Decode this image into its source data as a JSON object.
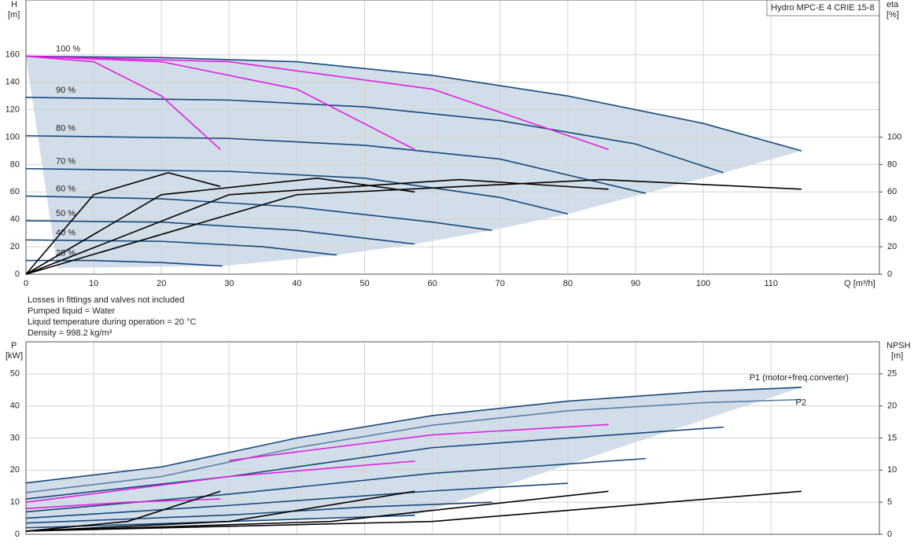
{
  "chart_data": [
    {
      "type": "line",
      "title": "Hydro MPC-E 4 CRIE 15-8",
      "ylabel": "H",
      "yunit": "[m]",
      "y2label": "eta",
      "y2unit": "[%]",
      "xlabel": "Q [m³/h]",
      "xlim": [
        0,
        126
      ],
      "ylim": [
        0,
        200
      ],
      "y2lim": [
        0,
        200
      ],
      "xticks": [
        0,
        10,
        20,
        30,
        40,
        50,
        60,
        70,
        80,
        90,
        100,
        110
      ],
      "yticks": [
        0,
        20,
        40,
        60,
        80,
        100,
        120,
        140,
        160
      ],
      "y2ticks": [
        0,
        20,
        40,
        60,
        80,
        100
      ],
      "grid": true,
      "xtick_labels": true,
      "area_color": "#c9d7e5",
      "series": [
        {
          "name": "100 %",
          "color": "#17487a",
          "x": [
            0,
            20,
            40,
            60,
            80,
            100,
            114.5
          ],
          "values": [
            159,
            158,
            155,
            145,
            130,
            110,
            90
          ]
        },
        {
          "name": "90 %",
          "color": "#17487a",
          "x": [
            0,
            30,
            50,
            70,
            90,
            103
          ],
          "values": [
            129,
            127,
            122,
            112,
            95,
            74
          ]
        },
        {
          "name": "80 %",
          "color": "#17487a",
          "x": [
            0,
            30,
            50,
            70,
            91.5
          ],
          "values": [
            101,
            99,
            94,
            84,
            59
          ]
        },
        {
          "name": "70 %",
          "color": "#17487a",
          "x": [
            0,
            30,
            50,
            70,
            80
          ],
          "values": [
            77,
            75,
            70,
            56,
            44
          ]
        },
        {
          "name": "60 %",
          "color": "#17487a",
          "x": [
            0,
            20,
            40,
            60,
            68.8
          ],
          "values": [
            57,
            55,
            49,
            38,
            32
          ]
        },
        {
          "name": "50 %",
          "color": "#17487a",
          "x": [
            0,
            20,
            40,
            57.4
          ],
          "values": [
            39,
            38,
            32,
            22
          ]
        },
        {
          "name": "40 %",
          "color": "#17487a",
          "x": [
            0,
            20,
            35,
            45.9
          ],
          "values": [
            25,
            24,
            20,
            14
          ]
        },
        {
          "name": "25 %",
          "color": "#17487a",
          "x": [
            0,
            10,
            20,
            29
          ],
          "values": [
            10,
            10,
            8.5,
            6
          ]
        },
        {
          "color": "#e020e0",
          "x": [
            0,
            10,
            20,
            28.7
          ],
          "values": [
            159,
            155,
            130,
            91
          ]
        },
        {
          "color": "#e020e0",
          "x": [
            0,
            20,
            40,
            57.4
          ],
          "values": [
            159,
            155,
            135,
            91
          ]
        },
        {
          "color": "#e020e0",
          "x": [
            0,
            30,
            60,
            86
          ],
          "values": [
            159,
            155,
            135,
            91
          ]
        },
        {
          "color": "#000000",
          "axis": "y2",
          "x": [
            0,
            10,
            21,
            28.7
          ],
          "values": [
            0,
            58,
            74,
            64
          ]
        },
        {
          "color": "#000000",
          "axis": "y2",
          "x": [
            0,
            20,
            43,
            57.4
          ],
          "values": [
            0,
            58,
            70,
            60
          ]
        },
        {
          "color": "#000000",
          "axis": "y2",
          "x": [
            0,
            30,
            64,
            86
          ],
          "values": [
            0,
            58,
            69,
            62
          ]
        },
        {
          "color": "#000000",
          "axis": "y2",
          "x": [
            0,
            40,
            85,
            114.5
          ],
          "values": [
            0,
            58,
            69,
            62
          ]
        }
      ]
    },
    {
      "type": "line",
      "ylabel": "P",
      "yunit": "[kW]",
      "y2label": "NPSH",
      "y2unit": "[m]",
      "xlim": [
        0,
        126
      ],
      "ylim": [
        0,
        60
      ],
      "y2lim": [
        0,
        30
      ],
      "xticks": [
        0,
        10,
        20,
        30,
        40,
        50,
        60,
        70,
        80,
        90,
        100,
        110
      ],
      "yticks": [
        0,
        10,
        20,
        30,
        40,
        50
      ],
      "y2ticks": [
        0,
        5,
        10,
        15,
        20,
        25
      ],
      "grid": true,
      "xtick_labels": false,
      "area_color": "#c9d7e5",
      "series": [
        {
          "name": "P1 (motor+freq.converter)",
          "color": "#17487a",
          "x": [
            0,
            20,
            40,
            60,
            80,
            100,
            114.5
          ],
          "values": [
            16,
            21,
            30,
            37,
            41.5,
            44.5,
            45.8
          ]
        },
        {
          "name": "P2",
          "color": "#5b80a8",
          "x": [
            0,
            20,
            40,
            60,
            80,
            100,
            114.5
          ],
          "values": [
            13,
            18,
            27,
            34,
            38.5,
            41,
            42
          ]
        },
        {
          "color": "#17487a",
          "x": [
            0,
            30,
            60,
            103
          ],
          "values": [
            11,
            18,
            27,
            33.4
          ]
        },
        {
          "color": "#17487a",
          "x": [
            0,
            30,
            60,
            91.5
          ],
          "values": [
            7,
            12.5,
            19,
            23.6
          ]
        },
        {
          "color": "#17487a",
          "x": [
            0,
            30,
            60,
            80
          ],
          "values": [
            5,
            9,
            13.5,
            15.9
          ]
        },
        {
          "color": "#17487a",
          "x": [
            0,
            30,
            50,
            68.8
          ],
          "values": [
            3.5,
            6,
            8.5,
            10
          ]
        },
        {
          "color": "#17487a",
          "x": [
            0,
            30,
            57.4
          ],
          "values": [
            2,
            4,
            5.9
          ]
        },
        {
          "color": "#e020e0",
          "x": [
            0,
            15,
            28.7
          ],
          "values": [
            8,
            10,
            11
          ]
        },
        {
          "color": "#e020e0",
          "x": [
            0,
            30,
            57.4
          ],
          "values": [
            10,
            18,
            22.8
          ]
        },
        {
          "color": "#e020e0",
          "x": [
            30,
            60,
            86
          ],
          "values": [
            23,
            31,
            34.2
          ]
        },
        {
          "color": "#000000",
          "axis": "y2",
          "x": [
            0,
            15,
            28.7
          ],
          "values": [
            0.5,
            2,
            6.7
          ]
        },
        {
          "color": "#000000",
          "axis": "y2",
          "x": [
            0,
            30,
            57.4
          ],
          "values": [
            0.5,
            2,
            6.7
          ]
        },
        {
          "color": "#000000",
          "axis": "y2",
          "x": [
            0,
            45,
            86
          ],
          "values": [
            0.5,
            2,
            6.7
          ]
        },
        {
          "color": "#000000",
          "axis": "y2",
          "x": [
            0,
            60,
            114.5
          ],
          "values": [
            0.5,
            2,
            6.7
          ]
        }
      ]
    }
  ],
  "notes": [
    "Losses in fittings and valves not included",
    "Pumped liquid = Water",
    "Liquid temperature during operation = 20 °C",
    "Density = 998.2 kg/m³"
  ]
}
